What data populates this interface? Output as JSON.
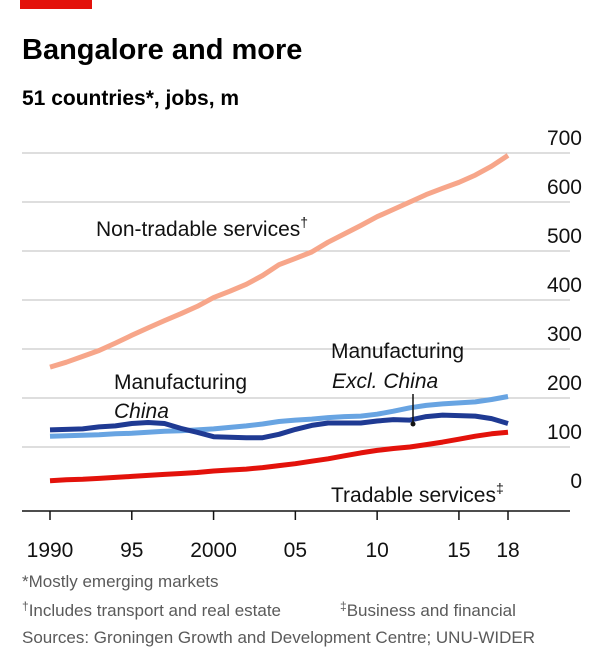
{
  "colors": {
    "accent": "#e3120b",
    "grid": "#c9c9c9",
    "axis": "#121212",
    "non_tradable": "#f7a68a",
    "manufacturing_china": "#1f3a93",
    "manufacturing_excl_china": "#68a4e2",
    "tradable": "#e3120b"
  },
  "header": {
    "title": "Bangalore and more",
    "subtitle": "51 countries*, jobs, m"
  },
  "chart_data": {
    "type": "line",
    "title": "Bangalore and more",
    "subtitle": "51 countries*, jobs, m",
    "xlabel": "",
    "ylabel": "",
    "xlim": [
      1990,
      2018
    ],
    "ylim": [
      0,
      700
    ],
    "grid": true,
    "y_axis_side": "right",
    "x_ticks": [
      1990,
      1995,
      2000,
      2005,
      2010,
      2015,
      2018
    ],
    "x_tick_labels": [
      "1990",
      "95",
      "2000",
      "05",
      "10",
      "15",
      "18"
    ],
    "y_ticks": [
      0,
      100,
      200,
      300,
      400,
      500,
      600,
      700
    ],
    "y_tick_labels": [
      "0",
      "100",
      "200",
      "300",
      "400",
      "500",
      "600",
      "700"
    ],
    "series": [
      {
        "key": "non_tradable",
        "name": "Non-tradable services†",
        "label_parts": [
          "Non-tradable services",
          "†"
        ],
        "color": "#f7a68a",
        "x": [
          1990,
          1991,
          1992,
          1993,
          1994,
          1995,
          1996,
          1997,
          1998,
          1999,
          2000,
          2001,
          2002,
          2003,
          2004,
          2005,
          2006,
          2007,
          2008,
          2009,
          2010,
          2011,
          2012,
          2013,
          2014,
          2015,
          2016,
          2017,
          2018
        ],
        "y": [
          263,
          273,
          285,
          297,
          312,
          328,
          343,
          358,
          372,
          387,
          405,
          418,
          432,
          450,
          472,
          485,
          498,
          518,
          535,
          552,
          570,
          585,
          600,
          615,
          628,
          640,
          655,
          673,
          695
        ]
      },
      {
        "key": "manufacturing_excl_china",
        "name": "Manufacturing Excl. China",
        "label_parts": [
          "Manufacturing",
          "Excl. China"
        ],
        "color": "#68a4e2",
        "x": [
          1990,
          1991,
          1992,
          1993,
          1994,
          1995,
          1996,
          1997,
          1998,
          1999,
          2000,
          2001,
          2002,
          2003,
          2004,
          2005,
          2006,
          2007,
          2008,
          2009,
          2010,
          2011,
          2012,
          2013,
          2014,
          2015,
          2016,
          2017,
          2018
        ],
        "y": [
          122,
          123,
          124,
          125,
          127,
          128,
          130,
          132,
          133,
          135,
          137,
          140,
          143,
          147,
          152,
          155,
          157,
          160,
          162,
          163,
          167,
          173,
          180,
          185,
          188,
          190,
          192,
          197,
          203
        ]
      },
      {
        "key": "manufacturing_china",
        "name": "Manufacturing China",
        "label_parts": [
          "Manufacturing",
          "China"
        ],
        "color": "#1f3a93",
        "x": [
          1990,
          1991,
          1992,
          1993,
          1994,
          1995,
          1996,
          1997,
          1998,
          1999,
          2000,
          2001,
          2002,
          2003,
          2004,
          2005,
          2006,
          2007,
          2008,
          2009,
          2010,
          2011,
          2012,
          2013,
          2014,
          2015,
          2016,
          2017,
          2018
        ],
        "y": [
          135,
          136,
          137,
          141,
          143,
          148,
          150,
          148,
          138,
          130,
          121,
          120,
          119,
          119,
          126,
          136,
          144,
          149,
          149,
          149,
          153,
          156,
          155,
          162,
          165,
          164,
          163,
          158,
          148
        ]
      },
      {
        "key": "tradable",
        "name": "Tradable services‡",
        "label_parts": [
          "Tradable services",
          "‡"
        ],
        "color": "#e3120b",
        "x": [
          1990,
          1991,
          1992,
          1993,
          1994,
          1995,
          1996,
          1997,
          1998,
          1999,
          2000,
          2001,
          2002,
          2003,
          2004,
          2005,
          2006,
          2007,
          2008,
          2009,
          2010,
          2011,
          2012,
          2013,
          2014,
          2015,
          2016,
          2017,
          2018
        ],
        "y": [
          31,
          33,
          34,
          36,
          38,
          40,
          42,
          44,
          46,
          48,
          51,
          53,
          55,
          58,
          62,
          66,
          71,
          76,
          82,
          88,
          93,
          97,
          100,
          105,
          110,
          116,
          122,
          127,
          130
        ]
      }
    ]
  },
  "footnotes": {
    "note1": "*Mostly emerging markets",
    "note2_symbol": "†",
    "note2_text": "Includes transport and real estate",
    "note3_symbol": "‡",
    "note3_text": "Business and financial",
    "sources": "Sources: Groningen Growth and Development Centre; UNU-WIDER"
  }
}
